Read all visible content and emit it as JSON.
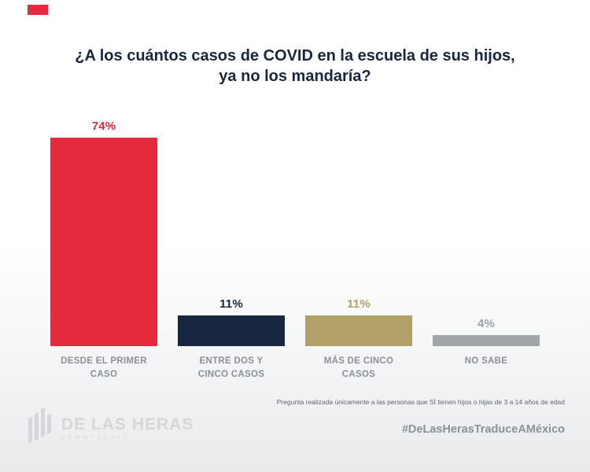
{
  "title": "¿A los cuántos casos de COVID en la escuela de sus hijos, ya no los mandaría?",
  "chart_data": {
    "type": "bar",
    "title": "¿A los cuántos casos de COVID en la escuela de sus hijos, ya no los mandaría?",
    "categories": [
      "DESDE EL PRIMER CASO",
      "ENTRE DOS Y CINCO CASOS",
      "MÁS DE CINCO CASOS",
      "NO SABE"
    ],
    "values": [
      74,
      11,
      11,
      4
    ],
    "value_labels": [
      "74%",
      "11%",
      "11%",
      "4%"
    ],
    "bar_colors": [
      "#e62a3e",
      "#16273f",
      "#b2a068",
      "#a2a6aa"
    ],
    "label_colors": [
      "#e62a3e",
      "#16273f",
      "#b2a068",
      "#9ba0a5"
    ],
    "ylim": [
      0,
      100
    ],
    "grid": false,
    "legend": "none",
    "xlabel": "",
    "ylabel": ""
  },
  "footnote": "Pregunta realizada únicamente a las personas que SÍ tienen hijos o hijas de 3 a 14 años de edad",
  "footer": {
    "logo_name": "DE LAS HERAS",
    "logo_sub": "DEMOTECNIA",
    "hashtag": "#DeLasHerasTraduceAMéxico"
  },
  "colors": {
    "accent_red": "#e62a3e",
    "title_navy": "#16273f",
    "category_gray": "#8b9097",
    "hashtag_gray": "#8a919b",
    "logo_gray": "#d4d6d9"
  }
}
